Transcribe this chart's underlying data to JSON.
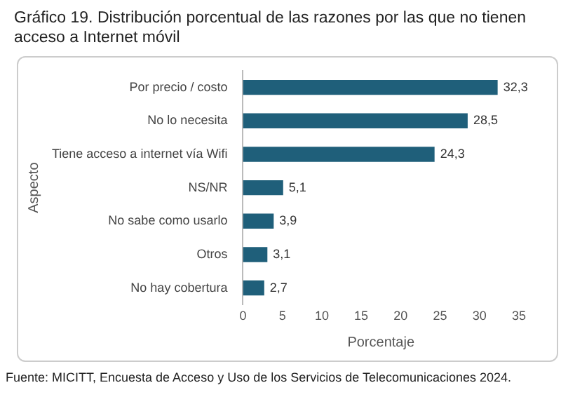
{
  "chart_data": {
    "type": "bar",
    "orientation": "horizontal",
    "title": "Gráfico 19. Distribución porcentual de las razones por las que no tienen acceso a Internet móvil",
    "categories": [
      "Por precio / costo",
      "No lo necesita",
      "Tiene acceso a internet vía Wifi",
      "NS/NR",
      "No sabe como usarlo",
      "Otros",
      "No hay cobertura"
    ],
    "values": [
      32.3,
      28.5,
      24.3,
      5.1,
      3.9,
      3.1,
      2.7
    ],
    "value_labels": [
      "32,3",
      "28,5",
      "24,3",
      "5,1",
      "3,9",
      "3,1",
      "2,7"
    ],
    "color": "#1f5f7a",
    "xlim": [
      0,
      35
    ],
    "xticks": [
      0,
      5,
      10,
      15,
      20,
      25,
      30,
      35
    ],
    "xlabel": "Porcentaje",
    "ylabel": "Aspecto",
    "grid": false,
    "legend": false,
    "annotations": [
      "Fuente: MICITT, Encuesta de Acceso y Uso de los Servicios de Telecomunicaciones 2024."
    ]
  }
}
